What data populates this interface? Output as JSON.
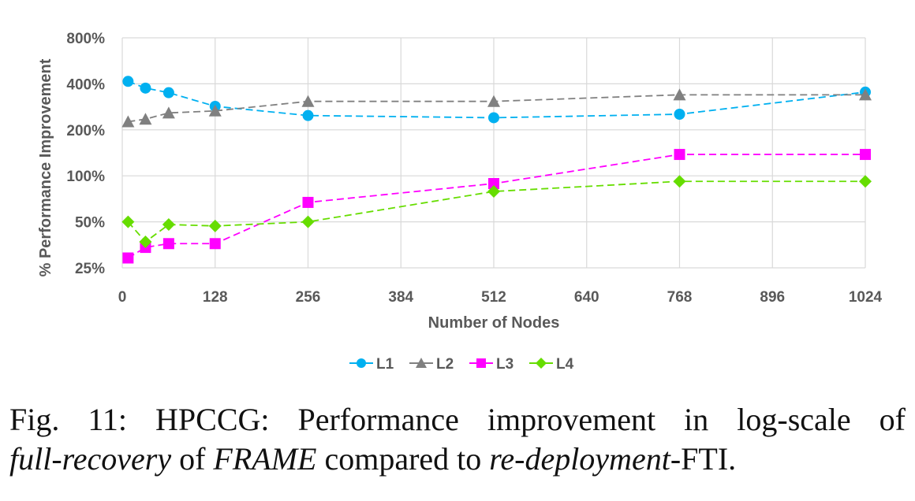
{
  "chart_data": {
    "type": "line",
    "ylabel": "% Performance Improvement",
    "xlabel": "Number of Nodes",
    "x_ticks": [
      "0",
      "128",
      "256",
      "384",
      "512",
      "640",
      "768",
      "896",
      "1024"
    ],
    "xlim": [
      0,
      1024
    ],
    "y_ticks": [
      "25%",
      "50%",
      "100%",
      "200%",
      "400%",
      "800%"
    ],
    "y_tick_values": [
      25,
      50,
      100,
      200,
      400,
      800
    ],
    "ylim": [
      25,
      800
    ],
    "y_scale": "log",
    "grid": true,
    "legend_position": "bottom",
    "series": [
      {
        "name": "L1",
        "color": "#00b0f0",
        "marker": "circle",
        "x": [
          8,
          32,
          64,
          128,
          256,
          512,
          768,
          1024
        ],
        "y": [
          415,
          375,
          350,
          285,
          248,
          240,
          253,
          353
        ]
      },
      {
        "name": "L2",
        "color": "#808080",
        "marker": "triangle",
        "x": [
          8,
          32,
          64,
          128,
          256,
          512,
          768,
          1024
        ],
        "y": [
          226,
          235,
          258,
          266,
          307,
          307,
          339,
          339
        ]
      },
      {
        "name": "L3",
        "color": "#ff00ff",
        "marker": "square",
        "x": [
          8,
          32,
          64,
          128,
          256,
          512,
          768,
          1024
        ],
        "y": [
          29,
          34,
          36,
          36,
          67,
          89,
          138,
          138
        ]
      },
      {
        "name": "L4",
        "color": "#66dd00",
        "marker": "diamond",
        "x": [
          8,
          32,
          64,
          128,
          256,
          512,
          768,
          1024
        ],
        "y": [
          50,
          37,
          48,
          47,
          50,
          79,
          92,
          92
        ]
      }
    ]
  },
  "caption": {
    "line1": "Fig. 11: HPCCG: Performance improvement in log-scale of",
    "line2_part1": "full-recovery",
    "line2_part2": " of ",
    "line2_part3": "FRAME",
    "line2_part4": " compared to ",
    "line2_part5": "re-deployment",
    "line2_part6": "-FTI."
  }
}
